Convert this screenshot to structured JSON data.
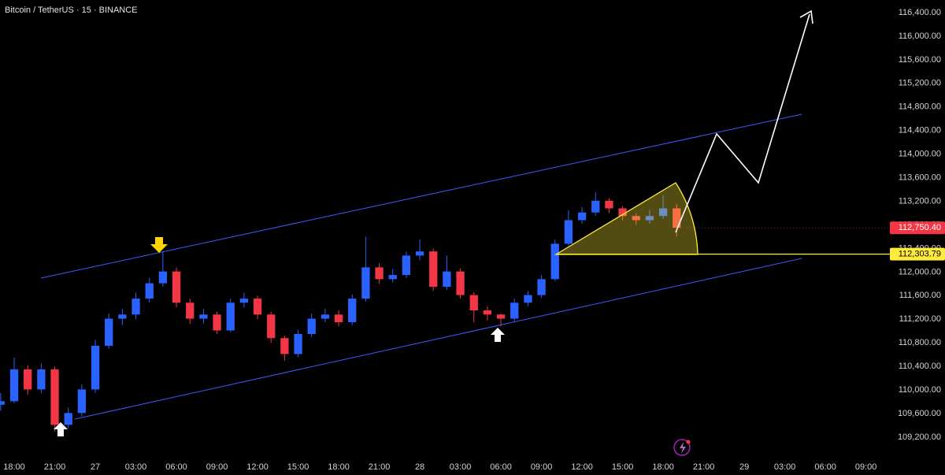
{
  "chart_data": {
    "type": "candlestick",
    "title": "Bitcoin / TetherUS · 15 · BINANCE",
    "up_color": "#2962ff",
    "down_color": "#f23645",
    "xlim": [
      -1.05,
      64.77
    ],
    "ylim": [
      108893,
      116613
    ],
    "grid": false,
    "x": [
      -1,
      0,
      1,
      2,
      3,
      4,
      5,
      6,
      7,
      8,
      9,
      10,
      11,
      12,
      13,
      14,
      15,
      16,
      17,
      18,
      19,
      20,
      21,
      22,
      23,
      24,
      25,
      26,
      27,
      28,
      29,
      30,
      31,
      32,
      33,
      34,
      35,
      36,
      37,
      38,
      39,
      40,
      41,
      42,
      43,
      44,
      45,
      46,
      47,
      48,
      49
    ],
    "open": [
      109750,
      109810,
      110350,
      110010,
      110350,
      109410,
      109610,
      110010,
      110750,
      111210,
      111280,
      111550,
      111810,
      112010,
      111480,
      111210,
      111280,
      111010,
      111480,
      111550,
      111280,
      110880,
      110610,
      110950,
      111210,
      111280,
      111150,
      111550,
      112080,
      111880,
      111950,
      112280,
      112350,
      111750,
      112010,
      111610,
      111350,
      111280,
      111210,
      111480,
      111610,
      111880,
      112480,
      112880,
      113010,
      113210,
      113080,
      112950,
      112880,
      112950,
      113080
    ],
    "high": [
      109950,
      110550,
      110420,
      110450,
      110400,
      109700,
      110100,
      110850,
      111300,
      111380,
      111650,
      111900,
      112350,
      112080,
      111550,
      111380,
      111330,
      111550,
      111650,
      111600,
      111330,
      110920,
      111020,
      111300,
      111380,
      111350,
      111620,
      112600,
      112150,
      112050,
      112350,
      112550,
      112400,
      112280,
      112060,
      111660,
      111420,
      111300,
      111550,
      111680,
      111950,
      112550,
      113050,
      113100,
      113350,
      113250,
      113120,
      113000,
      113050,
      113300,
      113150
    ],
    "low": [
      109650,
      109780,
      109920,
      109950,
      109300,
      109350,
      109550,
      109950,
      110700,
      111100,
      111200,
      111480,
      111750,
      111400,
      111120,
      111130,
      110950,
      110980,
      111400,
      111200,
      110800,
      110500,
      110560,
      110900,
      111150,
      111080,
      111100,
      111500,
      111800,
      111820,
      111900,
      112200,
      111680,
      111700,
      111550,
      111150,
      111180,
      111080,
      111150,
      111420,
      111560,
      111850,
      112450,
      112820,
      112950,
      113000,
      112880,
      112800,
      112820,
      112900,
      112600
    ],
    "close": [
      109810,
      110350,
      110010,
      110350,
      109410,
      109610,
      110010,
      110750,
      111210,
      111280,
      111550,
      111810,
      112010,
      111480,
      111210,
      111280,
      111010,
      111480,
      111550,
      111280,
      110880,
      110610,
      110950,
      111210,
      111280,
      111150,
      111550,
      112080,
      111880,
      111950,
      112280,
      112350,
      111750,
      112010,
      111610,
      111350,
      111280,
      111210,
      111480,
      111610,
      111880,
      112480,
      112880,
      113010,
      113210,
      113080,
      112950,
      112880,
      112950,
      113080,
      112750.4
    ],
    "last_price": {
      "value": 112750.4,
      "label": "112,750.40"
    },
    "level": {
      "value": 112303.79,
      "label": "112,303.79"
    },
    "yticks": [
      {
        "value": 109200,
        "label": "109,200.00"
      },
      {
        "value": 109600,
        "label": "109,600.00"
      },
      {
        "value": 110000,
        "label": "110,000.00"
      },
      {
        "value": 110400,
        "label": "110,400.00"
      },
      {
        "value": 110800,
        "label": "110,800.00"
      },
      {
        "value": 111200,
        "label": "111,200.00"
      },
      {
        "value": 111600,
        "label": "111,600.00"
      },
      {
        "value": 112000,
        "label": "112,000.00"
      },
      {
        "value": 112400,
        "label": "112,400.00"
      },
      {
        "value": 112800,
        "label": "112,800.00"
      },
      {
        "value": 113200,
        "label": "113,200.00"
      },
      {
        "value": 113600,
        "label": "113,600.00"
      },
      {
        "value": 114000,
        "label": "114,000.00"
      },
      {
        "value": 114400,
        "label": "114,400.00"
      },
      {
        "value": 114800,
        "label": "114,800.00"
      },
      {
        "value": 115200,
        "label": "115,200.00"
      },
      {
        "value": 115600,
        "label": "115,600.00"
      },
      {
        "value": 116000,
        "label": "116,000.00"
      },
      {
        "value": 116400,
        "label": "116,400.00"
      }
    ],
    "xticks": [
      {
        "value": 0,
        "label": "18:00"
      },
      {
        "value": 3,
        "label": "21:00"
      },
      {
        "value": 6,
        "label": "27"
      },
      {
        "value": 9,
        "label": "03:00"
      },
      {
        "value": 12,
        "label": "06:00"
      },
      {
        "value": 15,
        "label": "09:00"
      },
      {
        "value": 18,
        "label": "12:00"
      },
      {
        "value": 21,
        "label": "15:00"
      },
      {
        "value": 24,
        "label": "18:00"
      },
      {
        "value": 27,
        "label": "21:00"
      },
      {
        "value": 30,
        "label": "28"
      },
      {
        "value": 33,
        "label": "03:00"
      },
      {
        "value": 36,
        "label": "06:00"
      },
      {
        "value": 39,
        "label": "09:00"
      },
      {
        "value": 42,
        "label": "12:00"
      },
      {
        "value": 45,
        "label": "15:00"
      },
      {
        "value": 48,
        "label": "18:00"
      },
      {
        "value": 51,
        "label": "21:00"
      },
      {
        "value": 54,
        "label": "29"
      },
      {
        "value": 57,
        "label": "03:00"
      },
      {
        "value": 60,
        "label": "06:00"
      },
      {
        "value": 63,
        "label": "09:00"
      }
    ]
  }
}
